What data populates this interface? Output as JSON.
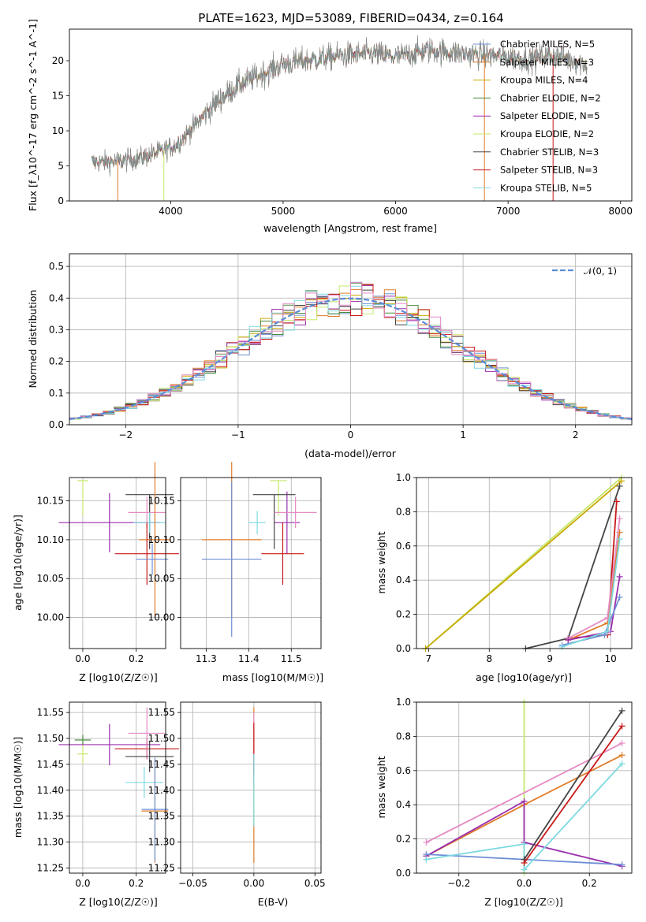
{
  "title": "PLATE=1623, MJD=53089, FIBERID=0434, z=0.164",
  "colors": {
    "Chabrier MILES": "#6f8fd6",
    "Salpeter MILES": "#e07c2a",
    "Kroupa MILES": "#c8a800",
    "Chabrier ELODIE": "#4a8a3a",
    "Salpeter ELODIE": "#9a2fad",
    "Kroupa ELODIE": "#c5e86a",
    "Chabrier STELIB": "#444444",
    "Salpeter STELIB": "#c81818",
    "Kroupa STELIB": "#7dd9e0",
    "pink": "#e58ac3"
  },
  "chart_data": [
    {
      "id": "spectrum",
      "type": "line",
      "xlabel": "wavelength [Angstrom, rest frame]",
      "ylabel": "Flux [f_λ10^-17 erg cm^-2 s^-1 A^-1]",
      "xlim": [
        3100,
        8100
      ],
      "ylim": [
        0,
        24.5
      ],
      "xticks": [
        "4000",
        "5000",
        "6000",
        "7000",
        "8000"
      ],
      "yticks": [
        "0",
        "5",
        "10",
        "15",
        "20"
      ],
      "grid": false,
      "legend_position": "right",
      "series": [
        {
          "name": "Chabrier MILES, N_SSP=5",
          "color": "#6f8fd6"
        },
        {
          "name": "Salpeter MILES, N_SSP=3",
          "color": "#e07c2a"
        },
        {
          "name": "Kroupa MILES, N_SSP=4",
          "color": "#c8a800"
        },
        {
          "name": "Chabrier ELODIE, N_SSP=2",
          "color": "#4a8a3a"
        },
        {
          "name": "Salpeter ELODIE, N_SSP=5",
          "color": "#9a2fad"
        },
        {
          "name": "Kroupa ELODIE, N_SSP=2",
          "color": "#c5e86a"
        },
        {
          "name": "Chabrier STELIB, N_SSP=3",
          "color": "#444444"
        },
        {
          "name": "Salpeter STELIB, N_SSP=3",
          "color": "#c81818"
        },
        {
          "name": "Kroupa STELIB, N_SSP=5",
          "color": "#7dd9e0"
        }
      ],
      "continuum": [
        [
          3300,
          5.5
        ],
        [
          3500,
          5.6
        ],
        [
          3700,
          6
        ],
        [
          3900,
          7
        ],
        [
          4050,
          8
        ],
        [
          4200,
          10.5
        ],
        [
          4400,
          14
        ],
        [
          4600,
          16.5
        ],
        [
          4800,
          18
        ],
        [
          5000,
          19.5
        ],
        [
          5200,
          20
        ],
        [
          5500,
          20.7
        ],
        [
          5800,
          21
        ],
        [
          6000,
          20.5
        ],
        [
          6300,
          21.5
        ],
        [
          6600,
          21
        ],
        [
          6800,
          20.8
        ],
        [
          7000,
          20.5
        ],
        [
          7200,
          20.2
        ],
        [
          7400,
          20.8
        ],
        [
          7700,
          19.5
        ]
      ],
      "dropouts": [
        3530,
        3940,
        6790,
        7400
      ]
    },
    {
      "id": "residual_hist",
      "type": "histogram",
      "xlabel": "(data-model)/error",
      "ylabel": "Normed distribution",
      "xlim": [
        -2.5,
        2.5
      ],
      "ylim": [
        0,
        0.54
      ],
      "xticks": [
        "−2",
        "−1",
        "0",
        "1",
        "2"
      ],
      "yticks": [
        "0.0",
        "0.1",
        "0.2",
        "0.3",
        "0.4",
        "0.5"
      ],
      "grid": true,
      "legend": "𝒩(0, 1)",
      "legend_position": "top-right",
      "bin_width": 0.1,
      "approx_peak": 0.4
    },
    {
      "id": "age_vs_Z",
      "type": "errorbar",
      "xlabel": "Z [log10(Z/Z☉)]",
      "ylabel": "age [log10(age/yr)]",
      "xlim": [
        -0.05,
        0.31
      ],
      "ylim": [
        9.96,
        10.18
      ],
      "xticks": [
        "0.0",
        "0.2"
      ],
      "yticks": [
        "10.00",
        "10.05",
        "10.10",
        "10.15"
      ],
      "points": [
        {
          "x": 0.0,
          "xerr": 0.02,
          "y": 10.176,
          "yerr_lo": 0.045,
          "yerr_hi": 0.0,
          "color": "#c5e86a"
        },
        {
          "x": 0.1,
          "xerr": 0.19,
          "y": 10.122,
          "yerr": 0.038,
          "color": "#9a2fad"
        },
        {
          "x": 0.25,
          "xerr": 0.09,
          "y": 10.158,
          "yerr_lo": 0.07,
          "yerr_hi": 0.0,
          "color": "#444444"
        },
        {
          "x": 0.24,
          "xerr": 0.07,
          "y": 10.135,
          "yerr": 0.02,
          "color": "#e58ac3"
        },
        {
          "x": 0.25,
          "xerr": 0.06,
          "y": 10.122,
          "yerr": 0.013,
          "color": "#7dd9e0"
        },
        {
          "x": 0.27,
          "xerr": 0.06,
          "y": 10.1,
          "yerr": 0.1,
          "color": "#e07c2a"
        },
        {
          "x": 0.24,
          "xerr": 0.12,
          "y": 10.082,
          "yerr": 0.04,
          "color": "#c81818"
        },
        {
          "x": 0.26,
          "xerr": 0.06,
          "y": 10.075,
          "yerr": 0.02,
          "color": "#6f8fd6"
        }
      ]
    },
    {
      "id": "age_vs_mass",
      "type": "errorbar",
      "xlabel": "mass [log10(M/M☉)]",
      "ylabel": "",
      "xlim": [
        11.24,
        11.57
      ],
      "ylim": [
        9.96,
        10.18
      ],
      "xticks": [
        "11.3",
        "11.4",
        "11.5"
      ],
      "yticks": [
        "10.00",
        "10.05",
        "10.10",
        "10.15"
      ],
      "points": [
        {
          "x": 11.47,
          "xerr": 0.02,
          "y": 10.176,
          "yerr_lo": 0.045,
          "yerr_hi": 0.0,
          "color": "#c5e86a"
        },
        {
          "x": 11.49,
          "xerr": 0.03,
          "y": 10.122,
          "yerr": 0.04,
          "color": "#9a2fad"
        },
        {
          "x": 11.46,
          "xerr": 0.05,
          "y": 10.158,
          "yerr_lo": 0.07,
          "yerr_hi": 0.0,
          "color": "#444444"
        },
        {
          "x": 11.51,
          "xerr": 0.05,
          "y": 10.135,
          "yerr": 0.02,
          "color": "#e58ac3"
        },
        {
          "x": 11.42,
          "xerr": 0.02,
          "y": 10.122,
          "yerr": 0.015,
          "color": "#7dd9e0"
        },
        {
          "x": 11.36,
          "xerr": 0.07,
          "y": 10.1,
          "yerr": 0.1,
          "color": "#e07c2a"
        },
        {
          "x": 11.48,
          "xerr": 0.05,
          "y": 10.082,
          "yerr": 0.04,
          "color": "#c81818"
        },
        {
          "x": 11.36,
          "xerr": 0.07,
          "y": 10.075,
          "yerr": 0.1,
          "color": "#6f8fd6"
        }
      ]
    },
    {
      "id": "weight_vs_age",
      "type": "line",
      "xlabel": "age [log10(age/yr)]",
      "ylabel": "mass weight",
      "xlim": [
        6.8,
        10.35
      ],
      "ylim": [
        0,
        1
      ],
      "xticks": [
        "7",
        "8",
        "9",
        "10"
      ],
      "yticks": [
        "0.0",
        "0.2",
        "0.4",
        "0.6",
        "0.8",
        "1.0"
      ],
      "grid": true,
      "series": [
        {
          "color": "#c5e86a",
          "points": [
            [
              6.95,
              0
            ],
            [
              10.18,
              1.0
            ]
          ]
        },
        {
          "color": "#c8a800",
          "points": [
            [
              6.95,
              0
            ],
            [
              10.18,
              0.98
            ]
          ]
        },
        {
          "color": "#444444",
          "points": [
            [
              8.6,
              0
            ],
            [
              9.3,
              0.06
            ],
            [
              10.15,
              0.95
            ]
          ]
        },
        {
          "color": "#c81818",
          "points": [
            [
              9.3,
              0.06
            ],
            [
              9.95,
              0.08
            ],
            [
              10.1,
              0.86
            ]
          ]
        },
        {
          "color": "#e07c2a",
          "points": [
            [
              9.3,
              0.05
            ],
            [
              9.95,
              0.15
            ],
            [
              10.15,
              0.68
            ]
          ]
        },
        {
          "color": "#e58ac3",
          "points": [
            [
              9.3,
              0.06
            ],
            [
              9.95,
              0.18
            ],
            [
              10.15,
              0.76
            ]
          ]
        },
        {
          "color": "#9a2fad",
          "points": [
            [
              9.3,
              0.05
            ],
            [
              10.0,
              0.1
            ],
            [
              10.15,
              0.42
            ]
          ]
        },
        {
          "color": "#6f8fd6",
          "points": [
            [
              9.2,
              0.02
            ],
            [
              9.9,
              0.08
            ],
            [
              10.15,
              0.3
            ]
          ]
        },
        {
          "color": "#7dd9e0",
          "points": [
            [
              9.2,
              0.01
            ],
            [
              9.95,
              0.1
            ],
            [
              10.15,
              0.64
            ]
          ]
        }
      ]
    },
    {
      "id": "mass_vs_Z",
      "type": "errorbar",
      "xlabel": "Z [log10(Z/Z☉)]",
      "ylabel": "mass [log10(M/M☉)]",
      "xlim": [
        -0.05,
        0.31
      ],
      "ylim": [
        11.24,
        11.57
      ],
      "xticks": [
        "0.0",
        "0.2"
      ],
      "yticks": [
        "11.25",
        "11.30",
        "11.35",
        "11.40",
        "11.45",
        "11.50",
        "11.55"
      ],
      "points": [
        {
          "x": 0.0,
          "xerr": 0.02,
          "y": 11.47,
          "yerr": 0.02,
          "color": "#c5e86a"
        },
        {
          "x": 0.0,
          "xerr": 0.03,
          "y": 11.497,
          "yerr": 0.01,
          "color": "#4a8a3a"
        },
        {
          "x": 0.1,
          "xerr": 0.19,
          "y": 11.488,
          "yerr": 0.04,
          "color": "#9a2fad"
        },
        {
          "x": 0.24,
          "xerr": 0.12,
          "y": 11.48,
          "yerr": 0.02,
          "color": "#c81818"
        },
        {
          "x": 0.24,
          "xerr": 0.07,
          "y": 11.51,
          "yerr": 0.05,
          "color": "#e58ac3"
        },
        {
          "x": 0.25,
          "xerr": 0.09,
          "y": 11.465,
          "yerr": 0.03,
          "color": "#444444"
        },
        {
          "x": 0.23,
          "xerr": 0.07,
          "y": 11.415,
          "yerr": 0.03,
          "color": "#7dd9e0"
        },
        {
          "x": 0.27,
          "xerr": 0.05,
          "y": 11.36,
          "yerr": 0.1,
          "color": "#e07c2a"
        },
        {
          "x": 0.27,
          "xerr": 0.05,
          "y": 11.363,
          "yerr": 0.1,
          "color": "#6f8fd6"
        }
      ]
    },
    {
      "id": "mass_vs_EBV",
      "type": "errorbar",
      "xlabel": "E(B-V)",
      "ylabel": "",
      "xlim": [
        -0.06,
        0.055
      ],
      "ylim": [
        11.24,
        11.57
      ],
      "xticks": [
        "−0.05",
        "0.00",
        "0.05"
      ],
      "yticks": [
        "11.25",
        "11.30",
        "11.35",
        "11.40",
        "11.45",
        "11.50",
        "11.55"
      ],
      "points": [
        {
          "x": 0,
          "y": 11.41,
          "yerr": 0.15,
          "color": "#e07c2a"
        },
        {
          "x": 0,
          "y": 11.48,
          "yerr": 0.07,
          "color": "#e58ac3"
        },
        {
          "x": 0,
          "y": 11.48,
          "yerr": 0.05,
          "color": "#c81818"
        },
        {
          "x": 0,
          "y": 11.4,
          "yerr": 0.07,
          "color": "#7dd9e0"
        }
      ]
    },
    {
      "id": "weight_vs_Z",
      "type": "line",
      "xlabel": "Z [log10(Z/Z☉)]",
      "ylabel": "mass weight",
      "xlim": [
        -0.33,
        0.33
      ],
      "ylim": [
        0,
        1
      ],
      "xticks": [
        "−0.2",
        "0.0",
        "0.2"
      ],
      "yticks": [
        "0.0",
        "0.2",
        "0.4",
        "0.6",
        "0.8",
        "1.0"
      ],
      "grid": true,
      "series": [
        {
          "color": "#c5e86a",
          "points": [
            [
              0,
              0
            ],
            [
              0,
              1.0
            ]
          ]
        },
        {
          "color": "#e58ac3",
          "points": [
            [
              -0.3,
              0.18
            ],
            [
              0.3,
              0.76
            ]
          ]
        },
        {
          "color": "#e07c2a",
          "points": [
            [
              -0.3,
              0.1
            ],
            [
              0,
              0.4
            ],
            [
              0.3,
              0.69
            ]
          ]
        },
        {
          "color": "#9a2fad",
          "points": [
            [
              -0.3,
              0.1
            ],
            [
              0,
              0.42
            ],
            [
              0,
              0.18
            ],
            [
              0.3,
              0.04
            ]
          ]
        },
        {
          "color": "#6f8fd6",
          "points": [
            [
              -0.3,
              0.11
            ],
            [
              0,
              0.08
            ],
            [
              0.3,
              0.05
            ]
          ]
        },
        {
          "color": "#7dd9e0",
          "points": [
            [
              -0.3,
              0.08
            ],
            [
              0,
              0.17
            ],
            [
              0,
              0.02
            ],
            [
              0.3,
              0.64
            ]
          ]
        },
        {
          "color": "#444444",
          "points": [
            [
              0,
              0.08
            ],
            [
              0.3,
              0.95
            ]
          ]
        },
        {
          "color": "#c81818",
          "points": [
            [
              0,
              0.06
            ],
            [
              0.3,
              0.86
            ]
          ]
        }
      ]
    }
  ]
}
